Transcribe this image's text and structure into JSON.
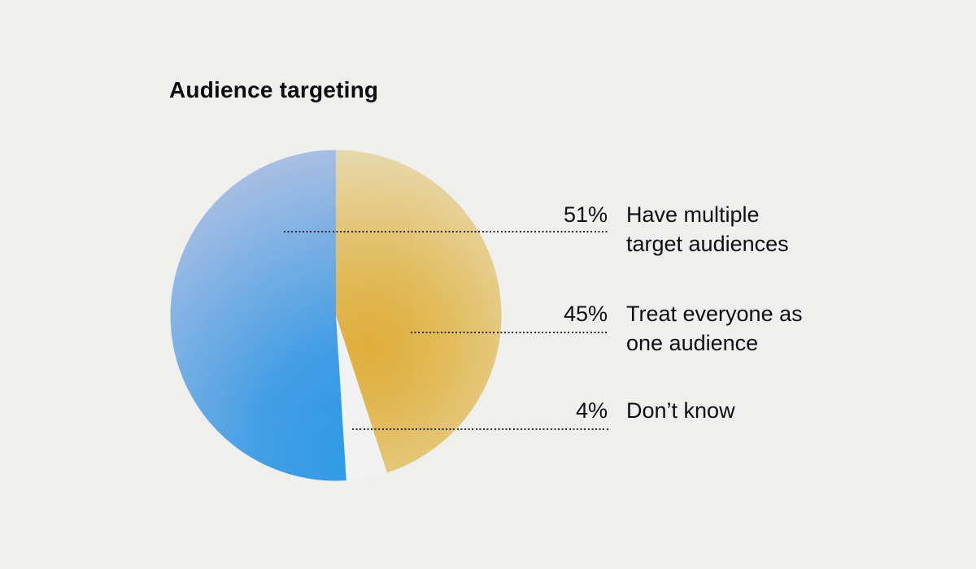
{
  "title": "Audience targeting",
  "colors": {
    "background": "#efefee",
    "text": "#0e0e0e",
    "leader_dots": "#2c2c2c"
  },
  "chart_data": {
    "type": "pie",
    "title": "Audience targeting",
    "unit": "%",
    "start_angle_deg": 0,
    "direction": "clockwise",
    "slices": [
      {
        "label": "Treat everyone as one audience",
        "value": 45,
        "gradient": {
          "inner": "#ecb83e",
          "mid": "#efc45b",
          "outer": "#f4e6ba"
        }
      },
      {
        "label": "Don’t know",
        "value": 4,
        "solid": "#ffffff"
      },
      {
        "label": "Have multiple target audiences",
        "value": 51,
        "gradient": {
          "inner": "#2fa2f3",
          "mid": "#45a7f2",
          "outer": "#b9cbf0"
        }
      }
    ]
  },
  "legend": {
    "rows": [
      {
        "percent": "51%",
        "lines": [
          "Have multiple",
          "target audiences"
        ]
      },
      {
        "percent": "45%",
        "lines": [
          "Treat everyone as",
          "one audience"
        ]
      },
      {
        "percent": "4%",
        "lines": [
          "Don’t know"
        ]
      }
    ]
  }
}
